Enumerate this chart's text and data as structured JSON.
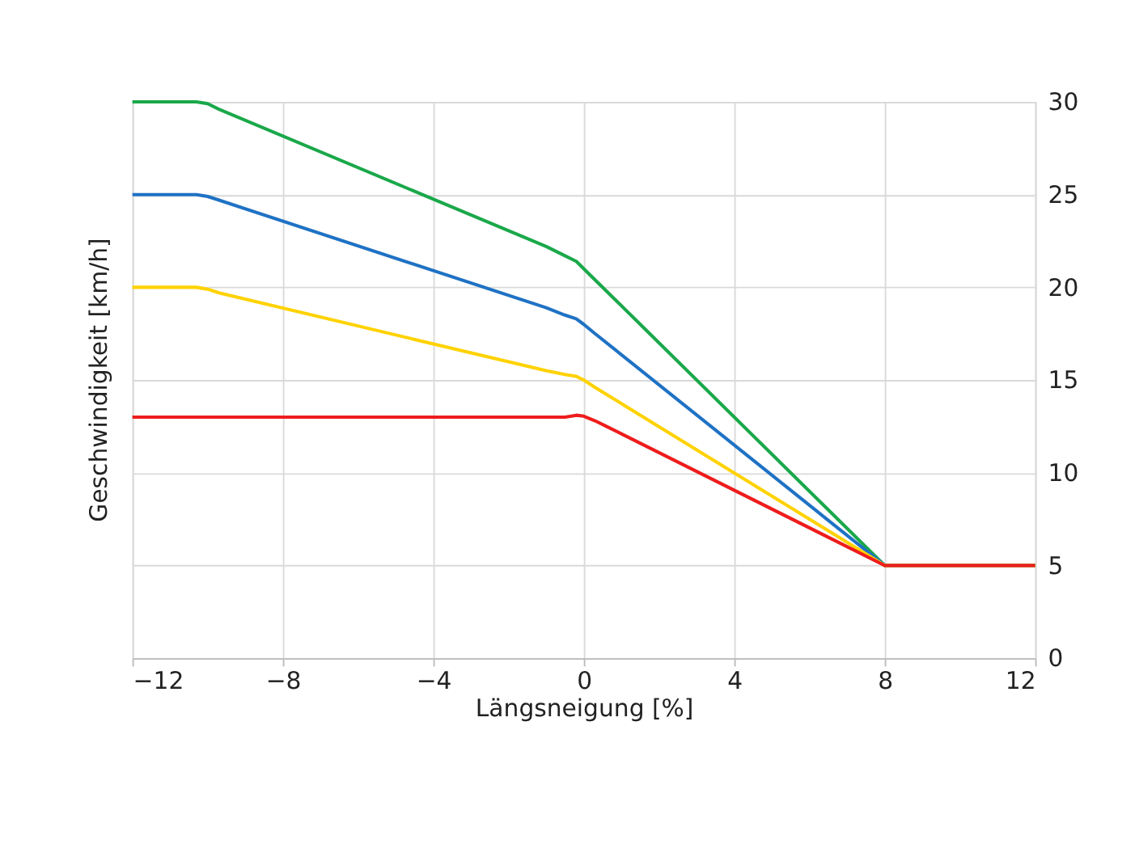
{
  "chart_data": {
    "type": "line",
    "xlabel": "Längsneigung [%]",
    "ylabel": "Geschwindigkeit [km/h]",
    "xlim": [
      -12,
      12
    ],
    "xticks": [
      -12,
      -8,
      -4,
      0,
      4,
      8,
      12
    ],
    "ylim": [
      0,
      30
    ],
    "yticks": [
      0,
      5,
      10,
      15,
      20,
      25,
      30
    ],
    "grid": true,
    "legend": false,
    "marker": "none",
    "line_style": "solid",
    "series": [
      {
        "color": "#1aa84a",
        "x": [
          -12,
          -10.6,
          -10.3,
          -10,
          -9.7,
          -1,
          -0.5,
          -0.2,
          0,
          0.3,
          8,
          12
        ],
        "values": [
          30,
          30,
          30,
          29.9,
          29.6,
          22.2,
          21.7,
          21.4,
          21,
          20.4,
          5,
          5
        ]
      },
      {
        "color": "#1f72c4",
        "x": [
          -12,
          -10.6,
          -10.3,
          -10,
          -9.7,
          -1,
          -0.5,
          -0.2,
          0,
          0.3,
          8,
          12
        ],
        "values": [
          25,
          25,
          25,
          24.9,
          24.7,
          18.9,
          18.5,
          18.3,
          18,
          17.5,
          5,
          5
        ]
      },
      {
        "color": "#ffd200",
        "x": [
          -12,
          -10.6,
          -10.3,
          -10,
          -9.7,
          -1,
          -0.5,
          -0.2,
          0,
          0.3,
          8,
          12
        ],
        "values": [
          20,
          20,
          20,
          19.9,
          19.7,
          15.5,
          15.3,
          15.2,
          15,
          14.6,
          5,
          5
        ]
      },
      {
        "color": "#ee1c1c",
        "x": [
          -12,
          -1,
          -0.5,
          -0.2,
          0,
          0.3,
          0.6,
          1,
          8,
          12
        ],
        "values": [
          13,
          13,
          13,
          13.1,
          13.05,
          12.8,
          12.5,
          12.1,
          5,
          5
        ]
      }
    ]
  }
}
